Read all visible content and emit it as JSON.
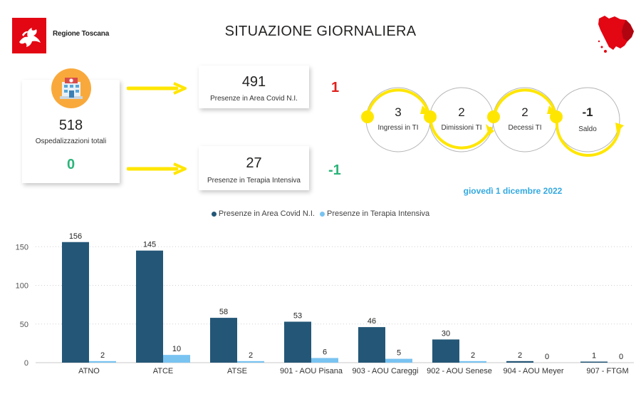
{
  "header": {
    "title": "SITUAZIONE GIORNALIERA",
    "logo_text": "Regione Toscana"
  },
  "kpi": {
    "total": {
      "value": "518",
      "label": "Ospedalizzazioni totali",
      "delta": "0"
    },
    "area": {
      "value": "491",
      "label": "Presenze in Area Covid N.I.",
      "delta": "1"
    },
    "ti": {
      "value": "27",
      "label": "Presenze in Terapia Intensiva",
      "delta": "-1"
    }
  },
  "flow": {
    "ingressi": {
      "value": "3",
      "label": "Ingressi in TI"
    },
    "dimissioni": {
      "value": "2",
      "label": "Dimissioni TI"
    },
    "decessi": {
      "value": "2",
      "label": "Decessi TI"
    },
    "saldo": {
      "value": "-1",
      "label": "Saldo"
    }
  },
  "date": "giovedì 1 dicembre 2022",
  "colors": {
    "series_area": "#245777",
    "series_ti": "#79c3f1",
    "accent_yellow": "#ffe600",
    "delta_green": "#2db47a",
    "delta_red": "#e0201b",
    "date_blue": "#33a9e0",
    "logo_red": "#e30613"
  },
  "icons": [
    "hospital-icon",
    "tuscany-map-icon",
    "pegasus-logo-icon"
  ],
  "chart_data": {
    "type": "bar",
    "categories": [
      "ATNO",
      "ATCE",
      "ATSE",
      "901 - AOU Pisana",
      "903 - AOU Careggi",
      "902 - AOU Senese",
      "904 - AOU Meyer",
      "907 - FTGM"
    ],
    "series": [
      {
        "name": "Presenze in Area Covid N.I.",
        "values": [
          156,
          145,
          58,
          53,
          46,
          30,
          2,
          1
        ]
      },
      {
        "name": "Presenze in Terapia Intensiva",
        "values": [
          2,
          10,
          2,
          6,
          5,
          2,
          0,
          0
        ]
      }
    ],
    "yticks": [
      "0",
      "50",
      "100",
      "150"
    ],
    "ylim": [
      0,
      165
    ],
    "grid": true,
    "legend": "top-center"
  }
}
